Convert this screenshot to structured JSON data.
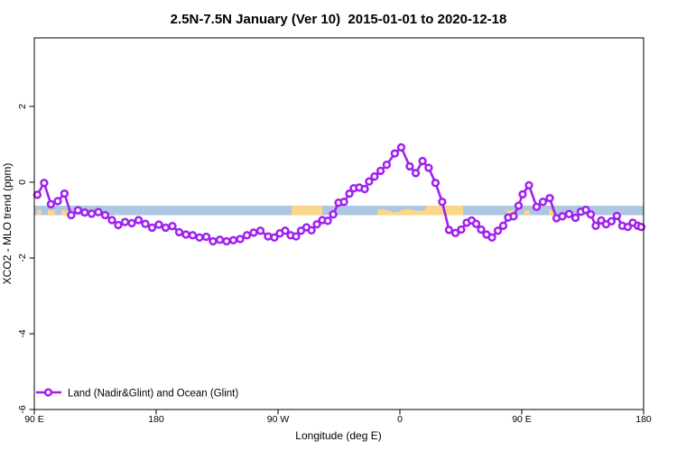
{
  "page": {
    "background": "#ffffff"
  },
  "chart_data": {
    "type": "line",
    "title": "2.5N-7.5N January (Ver 10)  2015-01-01 to 2020-12-18",
    "title_main": "2.5N-7.5N January (Ver 10)",
    "title_dates": "2015-01-01 to 2020-12-18",
    "xlabel": "Longitude (deg E)",
    "ylabel": "XCO2 - MLO trend (ppm)",
    "x_axis": {
      "unit": "degrees east, continuing 90E through 180, 90W, 0, 90E to 180",
      "range_deg": [
        90,
        540
      ],
      "ticks": [
        {
          "deg": 90,
          "label": "90 E"
        },
        {
          "deg": 180,
          "label": "180"
        },
        {
          "deg": 270,
          "label": "90 W"
        },
        {
          "deg": 360,
          "label": "0"
        },
        {
          "deg": 450,
          "label": "90 E"
        },
        {
          "deg": 540,
          "label": "180"
        }
      ]
    },
    "y_axis": {
      "unit": "ppm",
      "range_ppm": [
        -6.1,
        3.85
      ],
      "ticks": [
        {
          "ppm": 2,
          "label": "2"
        },
        {
          "ppm": 0,
          "label": "0"
        },
        {
          "ppm": -2,
          "label": "-2"
        },
        {
          "ppm": -4,
          "label": "-4"
        },
        {
          "ppm": -6,
          "label": "-6"
        }
      ]
    },
    "grid": false,
    "legend": {
      "position": "bottom-left",
      "entries": [
        {
          "label": "Land (Nadir&Glint) and Ocean (Glint)",
          "color": "#A020F0",
          "marker": "open-circle-on-line"
        }
      ]
    },
    "band": {
      "description": "horizontal reference band; blue = ocean, orange = land longitudes",
      "ppm_top": -0.62,
      "ppm_bottom": -0.87,
      "blue_color": "#ADC6E2",
      "orange_color": "#FAD689",
      "blue_span_deg": [
        90,
        540
      ],
      "orange_full_segments_deg": [
        [
          280,
          302.7
        ],
        [
          343.3,
          406.7
        ]
      ],
      "orange_partial_segments_deg": [
        [
          92,
          95.3
        ],
        [
          100,
          105.3
        ],
        [
          110,
          114
        ],
        [
          439.3,
          444.7
        ],
        [
          452,
          456
        ],
        [
          470,
          474.7
        ]
      ],
      "blue_wave_overlay_deg": [
        341.3,
        379.3
      ]
    },
    "series": [
      {
        "name": "Land (Nadir&Glint) and Ocean (Glint)",
        "color": "#A020F0",
        "marker": "open-circle",
        "lead_in": [
          90,
          -0.35
        ],
        "lead_out": [
          540,
          -1.18
        ],
        "points": [
          [
            92.3,
            -0.33
          ],
          [
            97.3,
            -0.02
          ],
          [
            102.3,
            -0.58
          ],
          [
            107.3,
            -0.5
          ],
          [
            112.3,
            -0.3
          ],
          [
            117.3,
            -0.87
          ],
          [
            122.3,
            -0.74
          ],
          [
            127.3,
            -0.8
          ],
          [
            132.3,
            -0.83
          ],
          [
            137.3,
            -0.79
          ],
          [
            142.3,
            -0.87
          ],
          [
            147.3,
            -1.0
          ],
          [
            152,
            -1.13
          ],
          [
            157,
            -1.05
          ],
          [
            162,
            -1.08
          ],
          [
            167,
            -1.0
          ],
          [
            172,
            -1.1
          ],
          [
            177,
            -1.2
          ],
          [
            182,
            -1.12
          ],
          [
            187,
            -1.2
          ],
          [
            192,
            -1.16
          ],
          [
            197,
            -1.32
          ],
          [
            202,
            -1.38
          ],
          [
            207,
            -1.4
          ],
          [
            212,
            -1.46
          ],
          [
            217,
            -1.44
          ],
          [
            222,
            -1.56
          ],
          [
            227,
            -1.52
          ],
          [
            232,
            -1.56
          ],
          [
            237,
            -1.53
          ],
          [
            242,
            -1.5
          ],
          [
            247,
            -1.4
          ],
          [
            252,
            -1.33
          ],
          [
            257,
            -1.28
          ],
          [
            262.7,
            -1.43
          ],
          [
            267.3,
            -1.46
          ],
          [
            271.3,
            -1.35
          ],
          [
            275.3,
            -1.28
          ],
          [
            279.3,
            -1.4
          ],
          [
            283.3,
            -1.43
          ],
          [
            287,
            -1.28
          ],
          [
            291,
            -1.19
          ],
          [
            294.7,
            -1.27
          ],
          [
            298.7,
            -1.11
          ],
          [
            302.7,
            -1.0
          ],
          [
            306.7,
            -1.02
          ],
          [
            310.7,
            -0.85
          ],
          [
            314.7,
            -0.54
          ],
          [
            318.7,
            -0.52
          ],
          [
            322.7,
            -0.3
          ],
          [
            326,
            -0.16
          ],
          [
            330,
            -0.14
          ],
          [
            334,
            -0.18
          ],
          [
            337.3,
            0.02
          ],
          [
            341.3,
            0.15
          ],
          [
            345.7,
            0.3
          ],
          [
            350.3,
            0.46
          ],
          [
            356.3,
            0.76
          ],
          [
            361,
            0.92
          ],
          [
            367.3,
            0.42
          ],
          [
            371.7,
            0.24
          ],
          [
            376.7,
            0.56
          ],
          [
            381.3,
            0.38
          ],
          [
            386.3,
            -0.02
          ],
          [
            391.3,
            -0.52
          ],
          [
            396.3,
            -1.26
          ],
          [
            401,
            -1.34
          ],
          [
            405.3,
            -1.25
          ],
          [
            409.3,
            -1.07
          ],
          [
            413,
            -1.01
          ],
          [
            416.3,
            -1.1
          ],
          [
            420,
            -1.25
          ],
          [
            424,
            -1.38
          ],
          [
            428,
            -1.46
          ],
          [
            432.3,
            -1.28
          ],
          [
            436.3,
            -1.15
          ],
          [
            440,
            -0.93
          ],
          [
            444,
            -0.9
          ],
          [
            447.7,
            -0.62
          ],
          [
            450.7,
            -0.32
          ],
          [
            455.3,
            -0.08
          ],
          [
            461,
            -0.65
          ],
          [
            465.7,
            -0.52
          ],
          [
            470.7,
            -0.42
          ],
          [
            475.7,
            -0.95
          ],
          [
            480,
            -0.9
          ],
          [
            485,
            -0.84
          ],
          [
            489.7,
            -0.94
          ],
          [
            493.7,
            -0.78
          ],
          [
            497.3,
            -0.73
          ],
          [
            501,
            -0.85
          ],
          [
            504.7,
            -1.15
          ],
          [
            508.7,
            -1.01
          ],
          [
            512.3,
            -1.11
          ],
          [
            516.3,
            -1.03
          ],
          [
            520.3,
            -0.89
          ],
          [
            524.3,
            -1.15
          ],
          [
            528.3,
            -1.18
          ],
          [
            532,
            -1.07
          ],
          [
            535.7,
            -1.15
          ],
          [
            538.3,
            -1.18
          ]
        ]
      }
    ]
  }
}
